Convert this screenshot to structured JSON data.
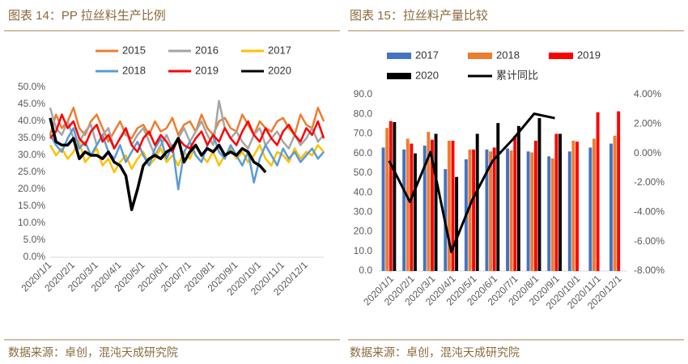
{
  "chart_data": [
    {
      "type": "line",
      "title": "图表 14：PP 拉丝料生产比例",
      "source": "数据来源：卓创，混沌天成研究院",
      "categories": [
        "2020/1/1",
        null,
        null,
        null,
        "2020/2/1",
        null,
        null,
        null,
        "2020/3/1",
        null,
        null,
        null,
        "2020/4/1",
        null,
        null,
        null,
        "2020/5/1",
        null,
        null,
        null,
        "2020/6/1",
        null,
        null,
        null,
        "2020/7/1",
        null,
        null,
        null,
        "2020/8/1",
        null,
        null,
        null,
        "2020/9/1",
        null,
        null,
        null,
        "2020/10/1",
        null,
        null,
        null,
        "2020/11/1",
        null,
        null,
        null,
        "2020/12/1",
        null,
        null,
        null
      ],
      "series": [
        {
          "name": "2015",
          "color": "#ed7d31",
          "width": 2.5,
          "values": [
            36,
            42,
            38,
            40,
            44,
            38,
            36,
            40,
            42,
            38,
            34,
            37,
            40,
            36,
            35,
            38,
            39,
            36,
            40,
            37,
            38,
            41,
            36,
            39,
            40,
            37,
            42,
            38,
            36,
            40,
            41,
            38,
            37,
            42,
            39,
            36,
            40,
            38,
            37,
            40,
            41,
            38,
            36,
            42,
            39,
            38,
            44,
            40
          ]
        },
        {
          "name": "2016",
          "color": "#a5a5a5",
          "width": 2.5,
          "values": [
            44,
            38,
            36,
            40,
            35,
            34,
            37,
            39,
            33,
            36,
            38,
            32,
            35,
            37,
            33,
            36,
            38,
            34,
            30,
            33,
            36,
            32,
            35,
            38,
            34,
            37,
            40,
            36,
            33,
            46,
            38,
            35,
            37,
            34,
            32,
            36,
            38,
            33,
            35,
            37,
            34,
            32,
            36,
            33,
            35,
            38,
            34,
            36
          ]
        },
        {
          "name": "2017",
          "color": "#ffc000",
          "width": 2.5,
          "values": [
            33,
            30,
            32,
            29,
            31,
            34,
            28,
            30,
            32,
            27,
            29,
            25,
            28,
            30,
            26,
            29,
            31,
            27,
            29,
            32,
            28,
            30,
            27,
            31,
            29,
            33,
            30,
            28,
            31,
            27,
            30,
            32,
            29,
            31,
            28,
            30,
            33,
            29,
            27,
            31,
            30,
            28,
            32,
            29,
            31,
            30,
            33,
            31
          ]
        },
        {
          "name": "2018",
          "color": "#5b9bd5",
          "width": 2.5,
          "values": [
            36,
            33,
            31,
            35,
            38,
            32,
            34,
            30,
            33,
            36,
            31,
            29,
            33,
            28,
            31,
            34,
            30,
            27,
            32,
            35,
            29,
            33,
            20,
            31,
            34,
            30,
            28,
            33,
            36,
            31,
            29,
            33,
            30,
            27,
            31,
            22,
            29,
            33,
            30,
            27,
            32,
            29,
            31,
            28,
            30,
            32,
            29,
            31
          ]
        },
        {
          "name": "2019",
          "color": "#ff0000",
          "width": 2.5,
          "values": [
            35,
            37,
            42,
            38,
            40,
            35,
            33,
            37,
            39,
            34,
            36,
            32,
            35,
            38,
            33,
            31,
            35,
            37,
            33,
            36,
            34,
            31,
            35,
            33,
            32,
            35,
            37,
            33,
            36,
            34,
            38,
            35,
            33,
            37,
            40,
            36,
            34,
            38,
            35,
            33,
            37,
            39,
            36,
            34,
            38,
            36,
            40,
            35
          ]
        },
        {
          "name": "2020",
          "color": "#000000",
          "width": 3.5,
          "values": [
            41,
            34,
            33,
            33,
            35,
            29,
            31,
            30,
            30,
            29,
            31,
            28,
            27,
            24,
            14,
            20,
            27,
            29,
            30,
            29,
            31,
            32,
            35,
            28,
            31,
            33,
            30,
            32,
            31,
            33,
            30,
            31,
            30,
            32,
            31,
            28,
            27,
            25,
            null,
            null,
            null,
            null,
            null,
            null,
            null,
            null,
            null,
            null
          ]
        }
      ],
      "ylim": [
        0,
        50
      ],
      "yticks": [
        {
          "value": 0,
          "label": "0.0%"
        },
        {
          "value": 5,
          "label": "5.0%"
        },
        {
          "value": 10,
          "label": "10.0%"
        },
        {
          "value": 15,
          "label": "15.0%"
        },
        {
          "value": 20,
          "label": "20.0%"
        },
        {
          "value": 25,
          "label": "25.0%"
        },
        {
          "value": 30,
          "label": "30.0%"
        },
        {
          "value": 35,
          "label": "35.0%"
        },
        {
          "value": 40,
          "label": "40.0%"
        },
        {
          "value": 45,
          "label": "45.0%"
        },
        {
          "value": 50,
          "label": "50.0%"
        }
      ],
      "grid": false
    },
    {
      "type": "bar",
      "title": "图表 15：拉丝料产量比较",
      "source": "数据来源：卓创，混沌天成研究院",
      "categories": [
        "2020/1/1",
        "2020/2/1",
        "2020/3/1",
        "2020/4/1",
        "2020/5/1",
        "2020/6/1",
        "2020/7/1",
        "2020/8/1",
        "2020/9/1",
        "2020/10/1",
        "2020/11/1",
        "2020/12/1"
      ],
      "series": [
        {
          "name": "2017",
          "color": "#4472c4",
          "values": [
            63,
            62,
            64,
            52,
            57,
            62,
            62.5,
            61,
            58.5,
            61,
            63,
            65
          ]
        },
        {
          "name": "2018",
          "color": "#ed7d31",
          "values": [
            73,
            67.5,
            71,
            66.5,
            62,
            61,
            61.5,
            60.5,
            57.5,
            66.5,
            67.5,
            69
          ]
        },
        {
          "name": "2019",
          "color": "#ff0000",
          "values": [
            76.5,
            65,
            67,
            66.5,
            62,
            63,
            69,
            66.5,
            70,
            66,
            81,
            81.5
          ]
        },
        {
          "name": "2020",
          "color": "#000000",
          "values": [
            76,
            60,
            70,
            48,
            70,
            75.5,
            74,
            78,
            70,
            null,
            null,
            null
          ]
        },
        {
          "name": "累计同比",
          "color": "#000000",
          "axis": "y2",
          "values": [
            -0.5,
            -3.3,
            0.1,
            -6.7,
            -3.2,
            -0.5,
            1.0,
            2.7,
            2.4,
            null,
            null,
            null
          ]
        }
      ],
      "ylim": [
        0,
        90
      ],
      "yticks": [
        {
          "value": 0,
          "label": "0.0"
        },
        {
          "value": 10,
          "label": "10.0"
        },
        {
          "value": 20,
          "label": "20.0"
        },
        {
          "value": 30,
          "label": "30.0"
        },
        {
          "value": 40,
          "label": "40.0"
        },
        {
          "value": 50,
          "label": "50.0"
        },
        {
          "value": 60,
          "label": "60.0"
        },
        {
          "value": 70,
          "label": "70.0"
        },
        {
          "value": 80,
          "label": "80.0"
        },
        {
          "value": 90,
          "label": "90.0"
        }
      ],
      "y2lim": [
        -8,
        4
      ],
      "y2ticks": [
        {
          "value": -8,
          "label": "-8.00%"
        },
        {
          "value": -6,
          "label": "-6.00%"
        },
        {
          "value": -4,
          "label": "-4.00%"
        },
        {
          "value": -2,
          "label": "-2.00%"
        },
        {
          "value": 0,
          "label": "0.00%"
        },
        {
          "value": 2,
          "label": "2.00%"
        },
        {
          "value": 4,
          "label": "4.00%"
        }
      ],
      "grid": false
    }
  ]
}
